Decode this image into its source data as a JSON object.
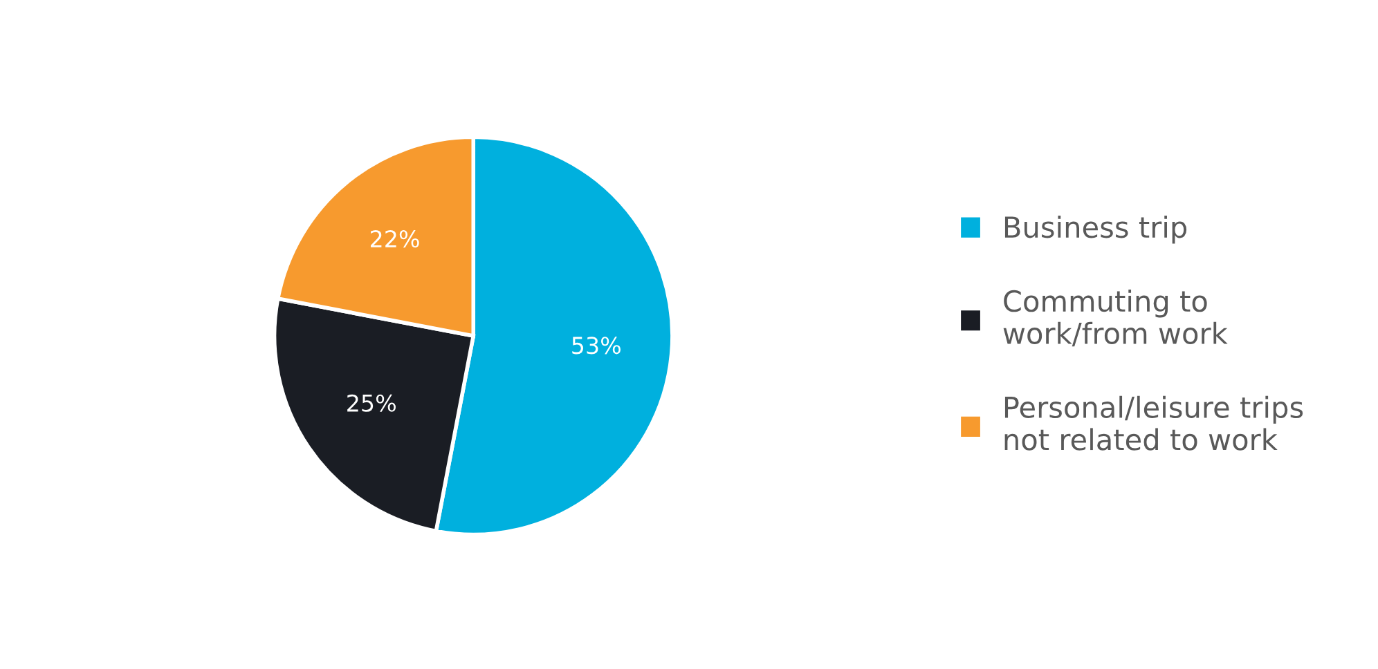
{
  "chart_data": {
    "type": "pie",
    "categories": [
      "Business trip",
      "Commuting to work/from work",
      "Personal/leisure trips not related to work"
    ],
    "values": [
      53,
      25,
      22
    ],
    "colors": [
      "#00b0de",
      "#1a1d24",
      "#f79a2e"
    ],
    "value_labels": [
      "53%",
      "25%",
      "22%"
    ],
    "legend": "right"
  }
}
